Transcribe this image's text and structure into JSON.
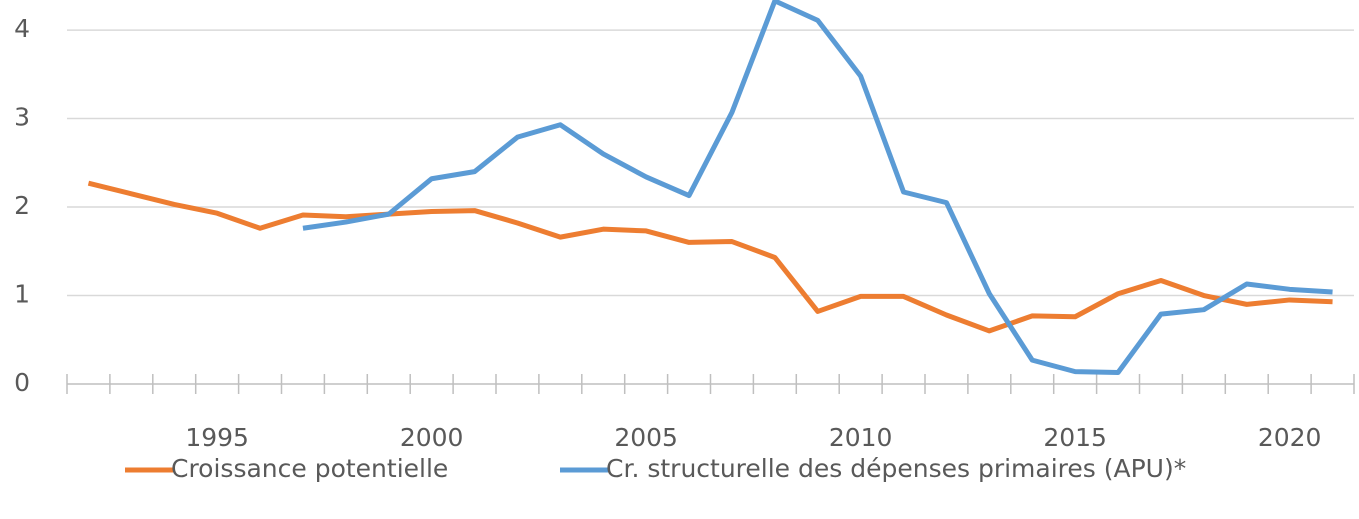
{
  "chart_data": {
    "type": "line",
    "categories": [
      null,
      null,
      null,
      "1995",
      null,
      null,
      null,
      null,
      "2000",
      null,
      null,
      null,
      null,
      "2005",
      null,
      null,
      null,
      null,
      "2010",
      null,
      null,
      null,
      null,
      "2015",
      null,
      null,
      null,
      null,
      "2020",
      null
    ],
    "series": [
      {
        "name": "Croissance potentielle",
        "color": "#ed7d31",
        "values": [
          2.27,
          2.15,
          2.03,
          1.93,
          1.76,
          1.91,
          1.89,
          1.92,
          1.95,
          1.96,
          1.82,
          1.66,
          1.75,
          1.73,
          1.6,
          1.61,
          1.43,
          0.82,
          0.99,
          0.99,
          0.78,
          0.6,
          0.77,
          0.76,
          1.02,
          1.17,
          1.0,
          0.9,
          0.95,
          0.93
        ]
      },
      {
        "name": "Cr. structurelle des dépenses primaires (APU)*",
        "color": "#5b9bd5",
        "values": [
          null,
          null,
          null,
          null,
          null,
          1.76,
          1.83,
          1.92,
          2.32,
          2.4,
          2.79,
          2.93,
          2.6,
          2.34,
          2.13,
          3.07,
          4.33,
          4.11,
          3.48,
          2.17,
          2.05,
          1.02,
          0.27,
          0.14,
          0.13,
          0.79,
          0.84,
          1.13,
          1.07,
          1.04
        ]
      }
    ],
    "ylim": [
      0,
      4.34
    ],
    "yticks": [
      0,
      1,
      2,
      3,
      4
    ],
    "grid": true,
    "legend": "bottom"
  }
}
